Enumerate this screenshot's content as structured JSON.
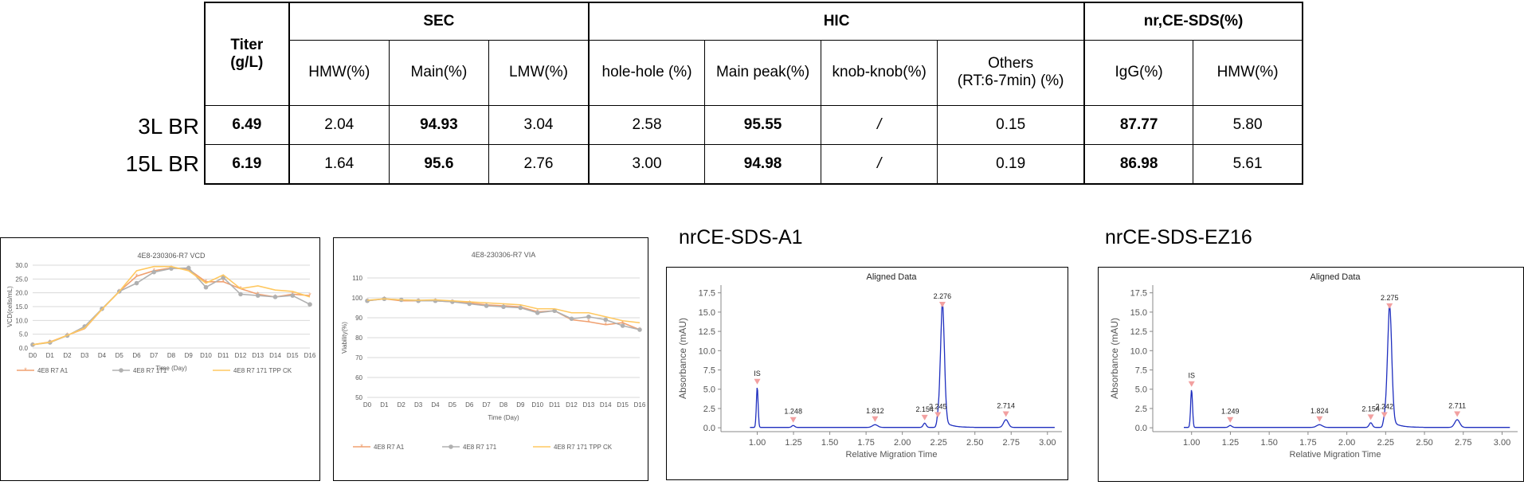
{
  "table": {
    "headers": {
      "titer": "Titer\n(g/L)",
      "groups": [
        "SEC",
        "HIC",
        "nr,CE-SDS(%)"
      ],
      "sub": [
        "HMW(%)",
        "Main(%)",
        "LMW(%)",
        "hole-hole (%)",
        "Main peak(%)",
        "knob-knob(%)",
        "Others\n(RT:6-7min) (%)",
        "IgG(%)",
        "HMW(%)"
      ]
    },
    "rows": [
      {
        "label": "3L BR",
        "values": [
          "6.49",
          "2.04",
          "94.93",
          "3.04",
          "2.58",
          "95.55",
          "/",
          "0.15",
          "87.77",
          "5.80"
        ]
      },
      {
        "label": "15L BR",
        "values": [
          "6.19",
          "1.64",
          "95.6",
          "2.76",
          "3.00",
          "94.98",
          "/",
          "0.19",
          "86.98",
          "5.61"
        ]
      }
    ],
    "bold_columns": [
      0,
      2,
      5,
      8
    ]
  },
  "section_titles": {
    "ce_a1": "nrCE-SDS-A1",
    "ce_ez16": "nrCE-SDS-EZ16"
  },
  "chart_data": [
    {
      "type": "line",
      "title": "4E8-230306-R7 VCD",
      "xlabel": "Time (Day)",
      "ylabel": "VCD(cells/mL)",
      "categories": [
        "D0",
        "D1",
        "D2",
        "D3",
        "D4",
        "D5",
        "D6",
        "D7",
        "D8",
        "D9",
        "D10",
        "D11",
        "D12",
        "D13",
        "D14",
        "D15",
        "D16"
      ],
      "ylim": [
        0,
        30
      ],
      "yticks": [
        "0.0",
        "5.0",
        "10.0",
        "15.0",
        "20.0",
        "25.0",
        "30.0"
      ],
      "grid": true,
      "legend": "bottom",
      "series": [
        {
          "name": "4E8 R7 A1",
          "color": "#f0a070",
          "values": [
            1.2,
            2.2,
            4.6,
            7.0,
            14.0,
            20.5,
            26.0,
            28.0,
            29.0,
            28.5,
            24.0,
            24.0,
            21.5,
            19.5,
            18.5,
            19.5,
            19.0
          ]
        },
        {
          "name": "4E8 R7 171",
          "color": "#b0b0b0",
          "values": [
            1.2,
            2.0,
            4.5,
            7.8,
            14.2,
            20.5,
            23.5,
            27.5,
            28.8,
            29.0,
            22.0,
            25.5,
            19.5,
            19.0,
            18.5,
            19.0,
            15.8
          ]
        },
        {
          "name": "4E8 R7 171 TPP CK",
          "color": "#ffc860",
          "values": [
            1.2,
            2.1,
            4.6,
            7.2,
            14.0,
            20.5,
            28.0,
            29.5,
            29.5,
            28.0,
            23.5,
            26.5,
            21.5,
            22.5,
            21.0,
            20.5,
            18.5
          ]
        }
      ]
    },
    {
      "type": "line",
      "title": "4E8-230306-R7 VIA",
      "xlabel": "Time (Day)",
      "ylabel": "Viability(%)",
      "categories": [
        "D0",
        "D1",
        "D2",
        "D3",
        "D4",
        "D5",
        "D6",
        "D7",
        "D8",
        "D9",
        "D10",
        "D11",
        "D12",
        "D13",
        "D14",
        "D15",
        "D16"
      ],
      "ylim": [
        50,
        110
      ],
      "yticks": [
        "50",
        "60",
        "70",
        "80",
        "90",
        "100",
        "110"
      ],
      "grid": true,
      "legend": "bottom",
      "series": [
        {
          "name": "4E8 R7 A1",
          "color": "#f0a070",
          "values": [
            98.5,
            99.5,
            98.5,
            98.5,
            98.5,
            98.0,
            97.5,
            96.5,
            96.0,
            95.5,
            93.0,
            93.5,
            89.0,
            88.0,
            86.5,
            87.5,
            84.0
          ]
        },
        {
          "name": "4E8 R7 171",
          "color": "#b0b0b0",
          "values": [
            98.5,
            99.5,
            99.0,
            98.5,
            98.5,
            98.0,
            97.0,
            96.0,
            95.5,
            95.0,
            92.5,
            93.5,
            89.5,
            90.5,
            89.0,
            86.0,
            84.0
          ]
        },
        {
          "name": "4E8 R7 171 TPP CK",
          "color": "#ffc860",
          "values": [
            98.8,
            99.5,
            99.0,
            98.8,
            99.0,
            98.5,
            98.0,
            97.5,
            97.0,
            96.5,
            94.5,
            94.5,
            92.5,
            92.5,
            90.5,
            88.5,
            87.5
          ]
        }
      ]
    },
    {
      "type": "line",
      "title": "Aligned Data",
      "xlabel": "Relative Migration Time",
      "ylabel": "Absorbance (mAU)",
      "xlim": [
        0.75,
        3.1
      ],
      "ylim": [
        -0.5,
        18.5
      ],
      "xticks": [
        "1.00",
        "1.25",
        "1.50",
        "1.75",
        "2.00",
        "2.25",
        "2.50",
        "2.75",
        "3.00"
      ],
      "yticks": [
        "0.0",
        "2.5",
        "5.0",
        "7.5",
        "10.0",
        "12.5",
        "15.0",
        "17.5"
      ],
      "peaks": [
        {
          "label": "IS",
          "x": 1.0,
          "y": 5.2
        },
        {
          "label": "1.248",
          "x": 1.248,
          "y": 0.25
        },
        {
          "label": "1.812",
          "x": 1.812,
          "y": 0.35
        },
        {
          "label": "2.154",
          "x": 2.154,
          "y": 0.55
        },
        {
          "label": "2.245",
          "x": 2.245,
          "y": 0.9
        },
        {
          "label": "2.276",
          "x": 2.276,
          "y": 15.2
        },
        {
          "label": "2.714",
          "x": 2.714,
          "y": 1.0
        }
      ]
    },
    {
      "type": "line",
      "title": "Aligned Data",
      "xlabel": "Relative Migration Time",
      "ylabel": "Absorbance (mAU)",
      "xlim": [
        0.75,
        3.1
      ],
      "ylim": [
        -0.5,
        18.5
      ],
      "xticks": [
        "1.00",
        "1.25",
        "1.50",
        "1.75",
        "2.00",
        "2.25",
        "2.50",
        "2.75",
        "3.00"
      ],
      "yticks": [
        "0.0",
        "2.5",
        "5.0",
        "7.5",
        "10.0",
        "12.5",
        "15.0",
        "17.5"
      ],
      "peaks": [
        {
          "label": "IS",
          "x": 1.0,
          "y": 4.9
        },
        {
          "label": "1.249",
          "x": 1.249,
          "y": 0.25
        },
        {
          "label": "1.824",
          "x": 1.824,
          "y": 0.35
        },
        {
          "label": "2.154",
          "x": 2.154,
          "y": 0.6
        },
        {
          "label": "2.242",
          "x": 2.242,
          "y": 0.9
        },
        {
          "label": "2.275",
          "x": 2.275,
          "y": 15.0
        },
        {
          "label": "2.711",
          "x": 2.711,
          "y": 1.0
        }
      ]
    }
  ]
}
